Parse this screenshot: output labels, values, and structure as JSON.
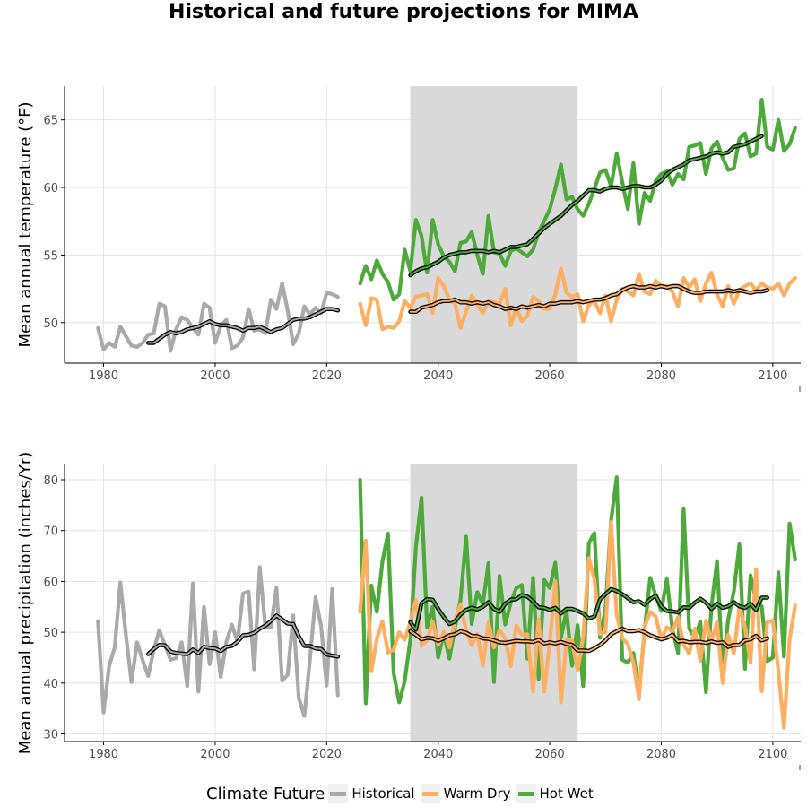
{
  "title": "Historical and future projections for MIMA",
  "legend": {
    "title": "Climate Future",
    "items": [
      {
        "label": "Historical",
        "color": "#a9a9a9"
      },
      {
        "label": "Warm Dry",
        "color": "#fdae61"
      },
      {
        "label": "Hot Wet",
        "color": "#4daa3a"
      }
    ]
  },
  "chart_data": [
    {
      "type": "line",
      "ylabel": "Mean annual temperature (°F)",
      "xlim": [
        1973,
        2105
      ],
      "ylim": [
        47,
        67.5
      ],
      "xticks": [
        1980,
        2000,
        2020,
        2040,
        2060,
        2080,
        2100
      ],
      "yticks": [
        50,
        55,
        60,
        65
      ],
      "shaded_period": [
        2035,
        2065
      ],
      "series": [
        {
          "name": "Historical",
          "color": "#a9a9a9",
          "x_start": 1979,
          "values": [
            49.6,
            48.0,
            48.5,
            48.2,
            49.7,
            49.0,
            48.3,
            48.2,
            48.5,
            49.1,
            49.2,
            51.4,
            51.2,
            47.9,
            49.5,
            50.4,
            50.2,
            49.6,
            49.1,
            51.4,
            51.1,
            48.5,
            49.8,
            50.2,
            48.1,
            48.3,
            48.9,
            51.0,
            49.4,
            49.5,
            49.2,
            51.7,
            51.0,
            52.9,
            50.9,
            48.4,
            49.2,
            51.2,
            50.6,
            51.1,
            50.7,
            52.2,
            52.1,
            51.9
          ]
        },
        {
          "name": "Hot Wet",
          "color": "#4daa3a",
          "x_start": 2026,
          "values": [
            52.9,
            54.2,
            53.2,
            54.6,
            53.6,
            53.0,
            51.7,
            52.1,
            55.4,
            53.8,
            57.6,
            56.4,
            53.7,
            57.6,
            55.8,
            54.9,
            54.5,
            53.8,
            55.9,
            56.0,
            56.7,
            55.0,
            53.6,
            57.9,
            55.2,
            55.1,
            54.2,
            55.3,
            55.5,
            55.2,
            54.9,
            55.4,
            56.7,
            57.5,
            58.4,
            59.9,
            61.7,
            59.1,
            59.3,
            58.4,
            57.9,
            58.8,
            59.9,
            61.1,
            61.3,
            60.1,
            62.5,
            60.4,
            58.4,
            61.8,
            57.3,
            59.6,
            59.0,
            60.5,
            61.0,
            61.2,
            60.2,
            61.0,
            60.6,
            63.0,
            63.1,
            63.3,
            61.0,
            62.9,
            63.4,
            62.2,
            61.3,
            61.4,
            63.6,
            64.0,
            62.3,
            62.5,
            66.5,
            63.0,
            62.8,
            65.0,
            62.7,
            63.2,
            64.4
          ]
        },
        {
          "name": "Warm Dry",
          "color": "#fdae61",
          "x_start": 2026,
          "values": [
            51.4,
            49.8,
            51.8,
            51.7,
            49.5,
            49.7,
            49.6,
            50.1,
            51.6,
            51.1,
            51.9,
            52.0,
            52.1,
            50.7,
            53.3,
            52.7,
            51.7,
            51.4,
            49.6,
            50.8,
            52.0,
            51.3,
            50.7,
            51.6,
            51.5,
            51.4,
            52.5,
            49.8,
            51.1,
            50.1,
            50.5,
            51.9,
            51.6,
            51.0,
            51.0,
            52.1,
            54.0,
            52.2,
            51.9,
            52.1,
            50.1,
            51.3,
            51.6,
            50.7,
            52.0,
            50.1,
            51.7,
            52.5,
            52.3,
            52.0,
            53.6,
            52.3,
            52.1,
            53.1,
            52.7,
            52.7,
            52.3,
            51.2,
            53.3,
            52.6,
            53.2,
            51.6,
            52.9,
            53.7,
            52.1,
            51.2,
            52.7,
            51.4,
            52.4,
            52.7,
            52.9,
            52.4,
            52.9,
            52.6,
            52.5,
            52.9,
            52.0,
            52.9,
            53.3
          ]
        },
        {
          "name": "Historical",
          "role": "smoothed",
          "color": "#000000",
          "x_start": 1988,
          "values": [
            48.5,
            48.5,
            48.8,
            49.1,
            49.3,
            49.2,
            49.3,
            49.5,
            49.6,
            49.7,
            49.9,
            50.1,
            49.9,
            49.8,
            49.8,
            49.7,
            49.6,
            49.4,
            49.6,
            49.6,
            49.7,
            49.5,
            49.3,
            49.5,
            49.6,
            49.9,
            50.2,
            50.3,
            50.3,
            50.4,
            50.6,
            50.8,
            51.0,
            51.0,
            50.9
          ]
        },
        {
          "name": "Hot Wet",
          "role": "smoothed",
          "color": "#000000",
          "x_start": 2035,
          "values": [
            53.5,
            53.8,
            54.0,
            54.1,
            54.3,
            54.5,
            54.8,
            55.0,
            55.1,
            55.2,
            55.2,
            55.3,
            55.3,
            55.3,
            55.2,
            55.3,
            55.2,
            55.4,
            55.6,
            55.6,
            55.7,
            55.8,
            56.2,
            56.6,
            57.0,
            57.3,
            57.6,
            57.9,
            58.3,
            58.7,
            59.0,
            59.4,
            59.8,
            59.8,
            59.7,
            59.9,
            60.0,
            60.0,
            59.9,
            60.0,
            60.1,
            60.1,
            60.0,
            60.0,
            60.2,
            60.5,
            61.0,
            61.3,
            61.5,
            61.7,
            62.0,
            62.1,
            62.2,
            62.3,
            62.5,
            62.6,
            62.5,
            62.6,
            63.0,
            63.1,
            63.2,
            63.4,
            63.6,
            63.8
          ]
        },
        {
          "name": "Warm Dry",
          "role": "smoothed",
          "color": "#000000",
          "x_start": 2035,
          "values": [
            50.8,
            50.8,
            51.1,
            51.2,
            51.3,
            51.5,
            51.6,
            51.6,
            51.7,
            51.5,
            51.5,
            51.4,
            51.5,
            51.4,
            51.5,
            51.3,
            51.2,
            51.0,
            51.1,
            51.0,
            51.2,
            51.1,
            51.2,
            51.3,
            51.2,
            51.4,
            51.4,
            51.5,
            51.5,
            51.5,
            51.6,
            51.5,
            51.6,
            51.7,
            51.7,
            51.8,
            52.0,
            52.1,
            52.4,
            52.6,
            52.7,
            52.6,
            52.6,
            52.7,
            52.6,
            52.7,
            52.6,
            52.7,
            52.7,
            52.5,
            52.3,
            52.2,
            52.2,
            52.3,
            52.3,
            52.3,
            52.3,
            52.4,
            52.3,
            52.4,
            52.3,
            52.2,
            52.3,
            52.3,
            52.4
          ]
        }
      ]
    },
    {
      "type": "line",
      "ylabel": "Mean annual precipitation (inches/Yr)",
      "xlim": [
        1973,
        2105
      ],
      "ylim": [
        28.5,
        83
      ],
      "xticks": [
        1980,
        2000,
        2020,
        2040,
        2060,
        2080,
        2100
      ],
      "yticks": [
        30,
        40,
        50,
        60,
        70,
        80
      ],
      "shaded_period": [
        2035,
        2065
      ],
      "series": [
        {
          "name": "Historical",
          "color": "#a9a9a9",
          "x_start": 1979,
          "values": [
            52.2,
            34.2,
            43.4,
            47.0,
            59.8,
            49.5,
            40.2,
            48.0,
            44.5,
            41.4,
            46.6,
            50.4,
            47.4,
            44.6,
            44.9,
            48.0,
            39.4,
            59.6,
            38.3,
            55.0,
            43.7,
            50.0,
            41.2,
            48.1,
            51.5,
            48.1,
            57.6,
            58.0,
            42.7,
            62.8,
            51.1,
            51.0,
            58.7,
            40.5,
            41.6,
            53.3,
            37.1,
            33.5,
            44.7,
            56.9,
            51.2,
            39.5,
            58.5,
            37.6
          ]
        },
        {
          "name": "Hot Wet",
          "color": "#4daa3a",
          "x_start": 2026,
          "values": [
            80.0,
            36.0,
            59.2,
            54.0,
            63.9,
            69.4,
            42.0,
            36.2,
            40.4,
            48.5,
            66.7,
            76.5,
            51.0,
            55.0,
            45.0,
            49.8,
            44.8,
            50.9,
            56.4,
            68.8,
            51.6,
            57.9,
            55.5,
            63.6,
            40.2,
            61.1,
            51.5,
            55.8,
            58.7,
            59.3,
            44.8,
            60.7,
            40.8,
            60.3,
            58.7,
            63.7,
            48.9,
            54.2,
            43.4,
            51.4,
            39.4,
            67.5,
            69.5,
            48.9,
            54.7,
            72.0,
            80.5,
            44.6,
            44.0,
            45.9,
            38.2,
            50.2,
            60.7,
            57.2,
            54.2,
            60.5,
            50.6,
            45.9,
            74.4,
            50.7,
            48.8,
            52.1,
            38.2,
            55.2,
            64.0,
            42.5,
            52.5,
            58.0,
            67.3,
            42.8,
            61.2,
            56.0,
            55.1,
            44.3,
            45.0,
            61.8,
            45.2,
            71.4,
            64.3
          ]
        },
        {
          "name": "Warm Dry",
          "color": "#fdae61",
          "x_start": 2026,
          "values": [
            54.0,
            68.0,
            42.3,
            48.7,
            52.2,
            46.0,
            46.5,
            50.0,
            48.5,
            52.0,
            56.3,
            47.3,
            48.4,
            52.0,
            47.5,
            50.1,
            47.0,
            52.5,
            55.4,
            50.4,
            47.4,
            49.7,
            43.4,
            52.0,
            47.0,
            50.4,
            48.8,
            43.3,
            51.3,
            49.5,
            49.6,
            38.3,
            52.5,
            38.3,
            48.1,
            60.0,
            36.2,
            48.5,
            48.3,
            42.5,
            49.2,
            64.6,
            60.4,
            49.7,
            50.0,
            71.7,
            53.3,
            48.9,
            47.6,
            44.1,
            36.8,
            51.0,
            54.0,
            53.1,
            48.5,
            51.0,
            50.1,
            53.0,
            47.5,
            45.8,
            50.7,
            44.4,
            52.3,
            48.3,
            52.0,
            40.0,
            49.5,
            45.8,
            55.0,
            51.0,
            44.0,
            62.4,
            38.4,
            52.0,
            52.3,
            42.3,
            31.2,
            48.6,
            55.3
          ]
        },
        {
          "name": "Historical",
          "role": "smoothed",
          "color": "#000000",
          "x_start": 1988,
          "values": [
            45.7,
            46.7,
            47.5,
            47.4,
            46.2,
            45.9,
            45.8,
            45.7,
            46.6,
            45.9,
            47.1,
            46.9,
            46.8,
            46.3,
            47.1,
            47.3,
            48.1,
            49.4,
            49.5,
            49.9,
            50.7,
            51.3,
            52.2,
            53.3,
            52.5,
            51.7,
            51.6,
            49.2,
            47.3,
            47.3,
            46.8,
            46.7,
            45.6,
            45.4,
            45.2
          ]
        },
        {
          "name": "Hot Wet",
          "role": "smoothed",
          "color": "#000000",
          "x_start": 2035,
          "values": [
            52.0,
            50.5,
            55.7,
            56.5,
            56.4,
            54.6,
            53.0,
            51.6,
            52.1,
            53.5,
            54.4,
            54.8,
            54.5,
            55.0,
            55.9,
            54.6,
            54.0,
            55.6,
            56.4,
            56.5,
            57.3,
            57.0,
            56.1,
            54.9,
            54.8,
            54.4,
            54.8,
            53.7,
            54.6,
            54.6,
            54.2,
            53.7,
            52.7,
            53.1,
            56.4,
            57.5,
            58.5,
            58.1,
            57.5,
            56.7,
            55.9,
            56.1,
            55.4,
            56.5,
            57.2,
            55.1,
            54.2,
            54.1,
            53.9,
            54.9,
            54.8,
            55.8,
            56.6,
            55.8,
            54.6,
            55.6,
            54.8,
            55.1,
            55.9,
            55.1,
            54.8,
            55.6,
            54.4,
            56.8,
            56.8
          ]
        },
        {
          "name": "Warm Dry",
          "role": "smoothed",
          "color": "#000000",
          "x_start": 2035,
          "values": [
            50.2,
            49.5,
            48.6,
            48.9,
            48.8,
            48.3,
            48.8,
            49.4,
            49.6,
            50.2,
            49.9,
            49.3,
            49.2,
            48.8,
            48.7,
            48.4,
            48.0,
            47.9,
            48.1,
            48.3,
            48.2,
            48.2,
            48.1,
            48.5,
            47.8,
            48.0,
            47.8,
            48.1,
            47.7,
            47.5,
            46.4,
            46.4,
            46.3,
            46.8,
            47.5,
            48.4,
            49.6,
            50.2,
            50.7,
            50.2,
            50.2,
            50.4,
            50.0,
            49.4,
            49.0,
            48.6,
            48.9,
            49.5,
            48.2,
            48.3,
            48.0,
            48.1,
            48.1,
            47.9,
            48.2,
            47.9,
            48.0,
            47.1,
            47.5,
            47.5,
            48.4,
            48.6,
            49.3,
            48.4,
            48.8
          ]
        }
      ]
    }
  ]
}
